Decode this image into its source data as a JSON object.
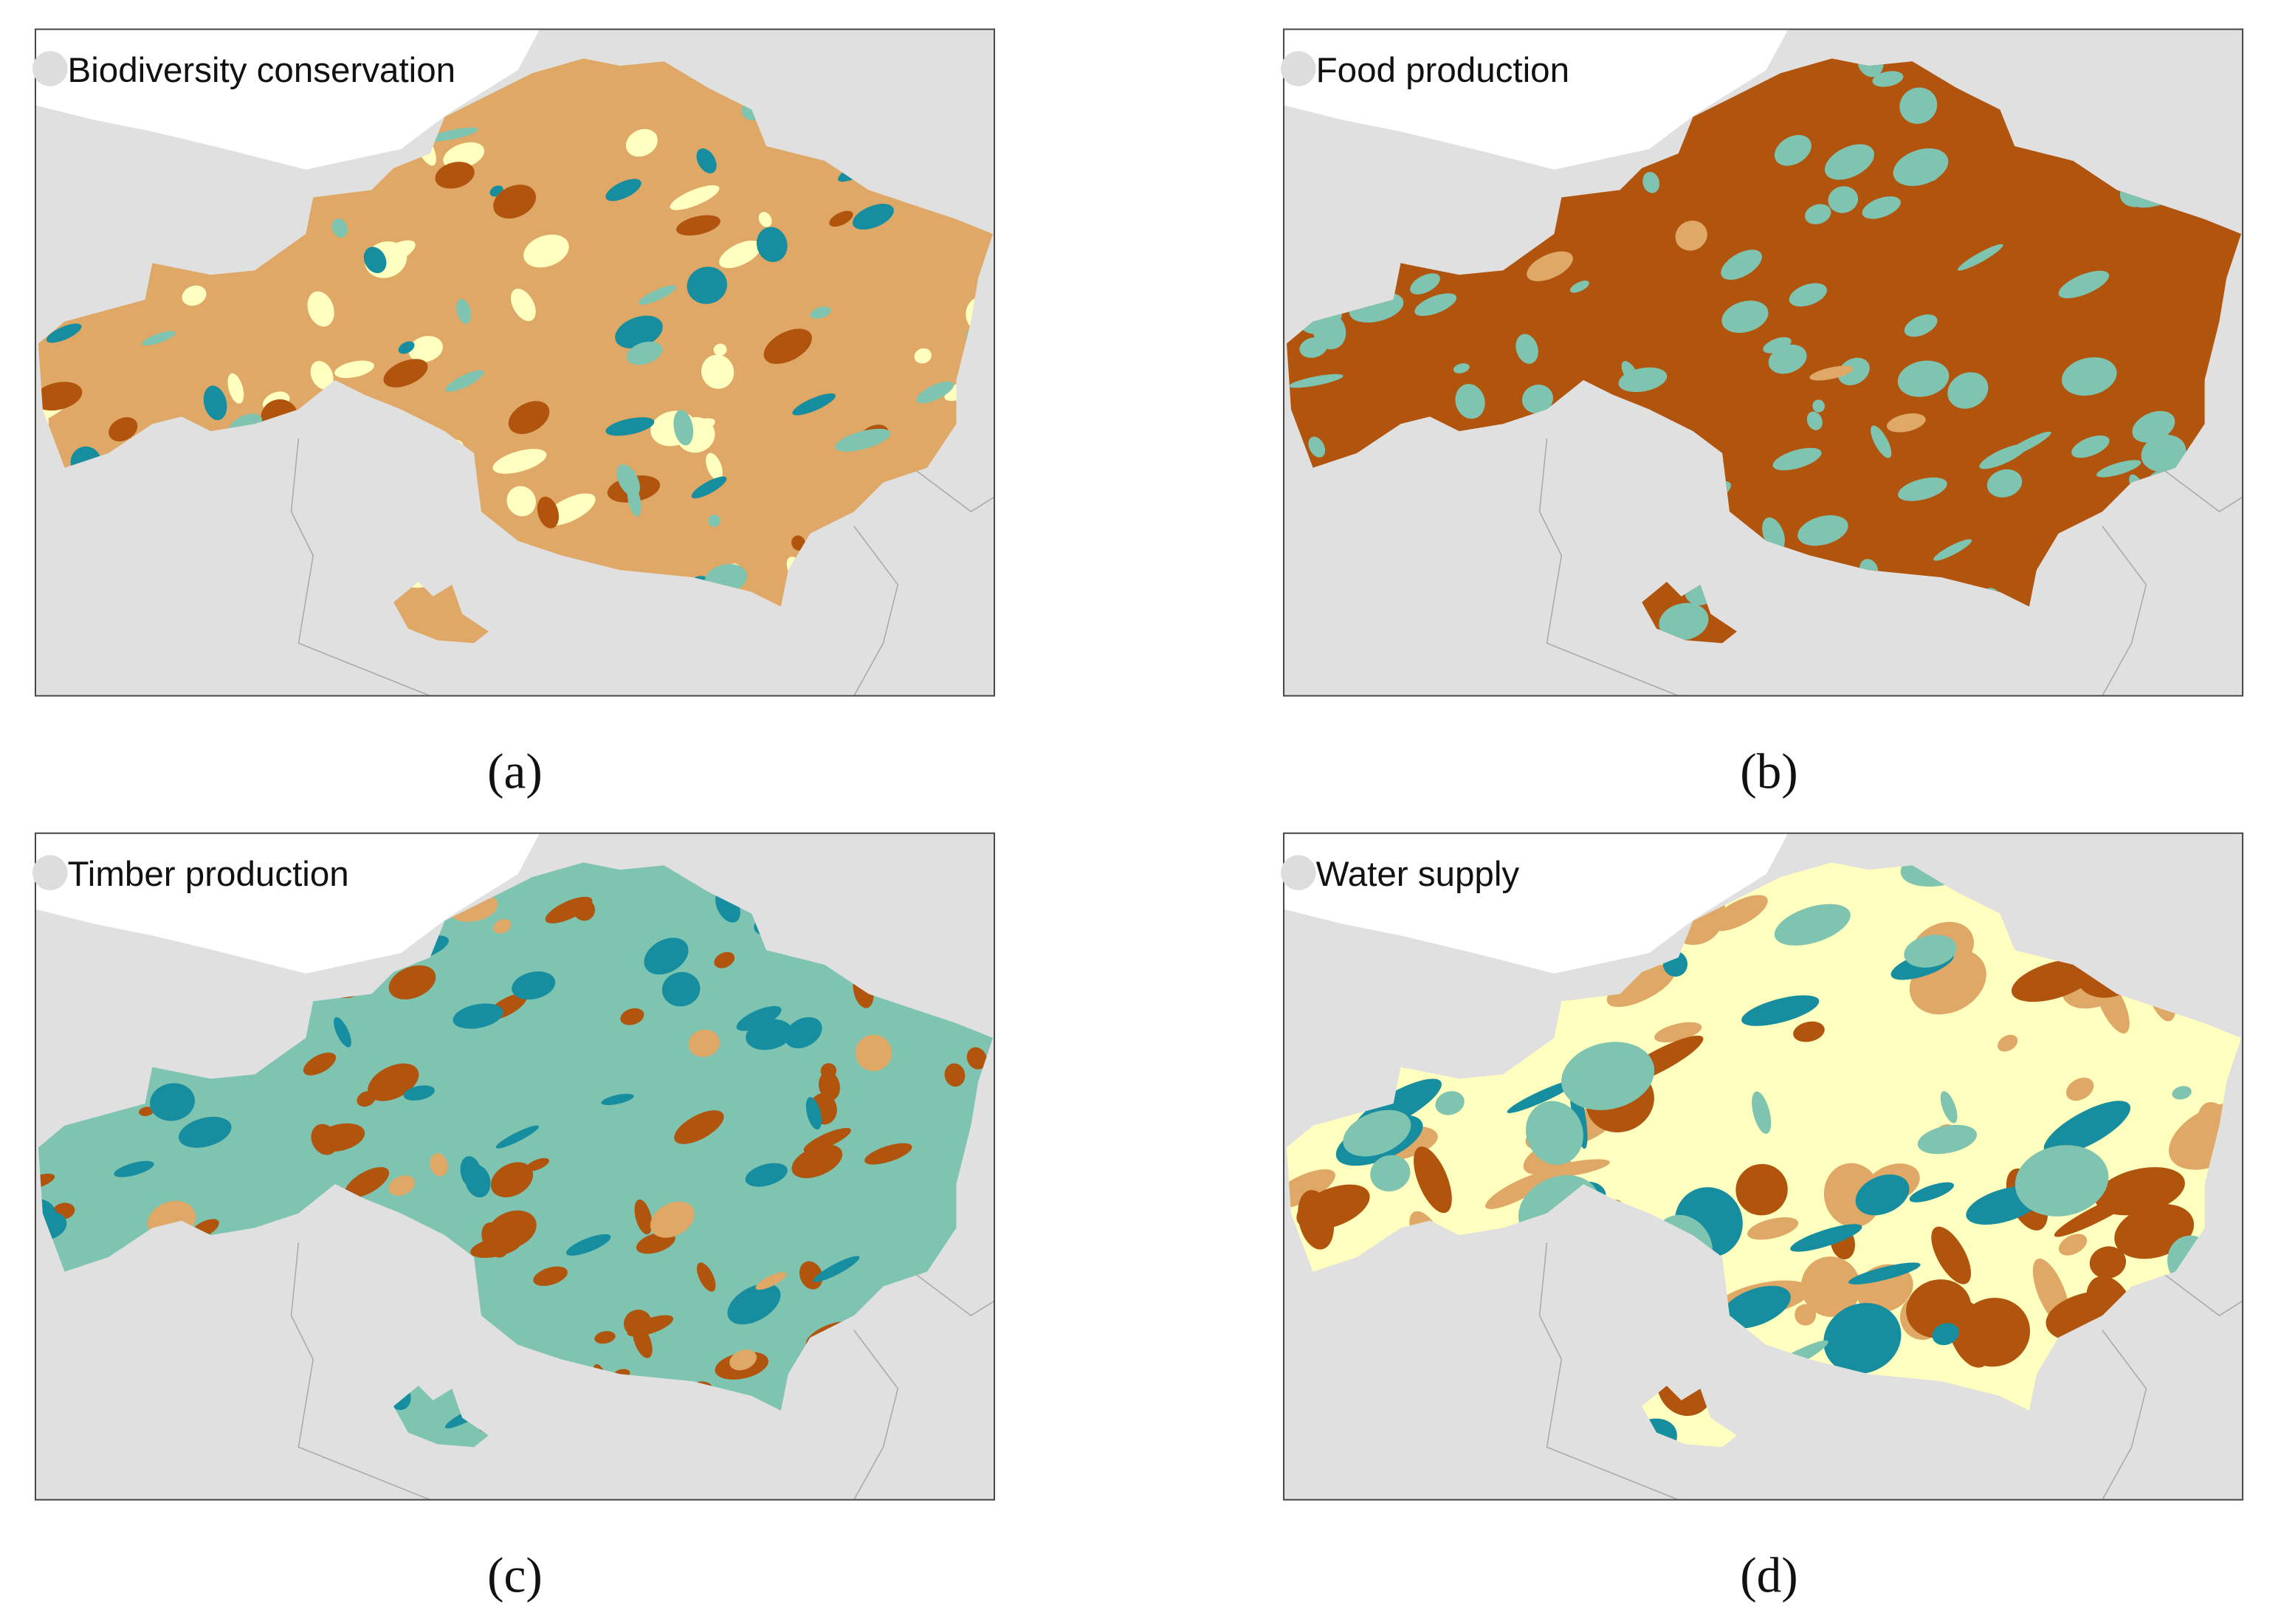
{
  "panels": [
    {
      "title": "Biodiversity conservation",
      "caption": "(a)"
    },
    {
      "title": "Food production",
      "caption": "(b)"
    },
    {
      "title": "Timber production",
      "caption": "(c)"
    },
    {
      "title": "Water supply",
      "caption": "(d)"
    }
  ]
}
